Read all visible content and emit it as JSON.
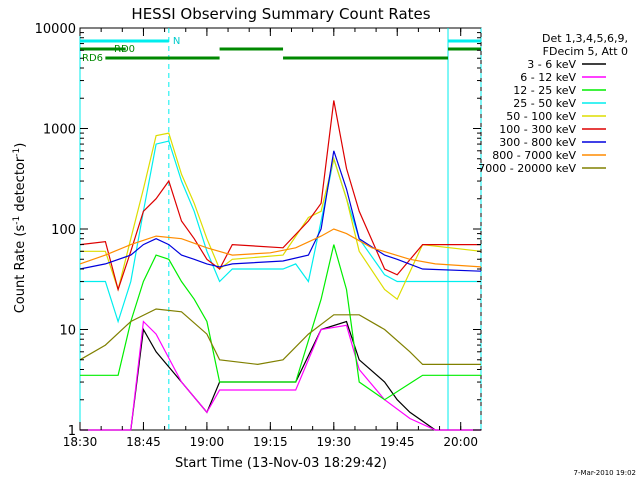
{
  "chart_data": {
    "type": "line",
    "title": "HESSI Observing Summary Count Rates",
    "xlabel": "Start Time (13-Nov-03 18:29:42)",
    "ylabel_main": "Count Rate (s",
    "ylabel_sup1": "-1",
    "ylabel_mid": " detector",
    "ylabel_sup2": "-1",
    "ylabel_end": ")",
    "footer": "7-Mar-2010 19:02",
    "y_log": true,
    "ylim": [
      1,
      10000
    ],
    "xlim": [
      "18:30",
      "20:08"
    ],
    "x_ticks": [
      "18:30",
      "18:45",
      "19:00",
      "19:15",
      "19:30",
      "19:45",
      "20:00"
    ],
    "y_ticks": [
      "1",
      "10",
      "100",
      "1000",
      "10000"
    ],
    "legend_header": [
      "Det 1,3,4,5,6,9,",
      "FDecim 5, Att 0"
    ],
    "series": [
      {
        "name": "3 - 6 keV",
        "color": "#000000",
        "values": [
          [
            18.5,
            1
          ],
          [
            18.7,
            1
          ],
          [
            18.75,
            10
          ],
          [
            18.8,
            6
          ],
          [
            18.9,
            3
          ],
          [
            19.0,
            1.5
          ],
          [
            19.05,
            3
          ],
          [
            19.2,
            3
          ],
          [
            19.35,
            3
          ],
          [
            19.45,
            10
          ],
          [
            19.55,
            12
          ],
          [
            19.6,
            5
          ],
          [
            19.7,
            3
          ],
          [
            19.75,
            2
          ],
          [
            19.8,
            1.5
          ],
          [
            19.9,
            1
          ],
          [
            20.08,
            1
          ]
        ]
      },
      {
        "name": "6 - 12 keV",
        "color": "#ff00ff",
        "values": [
          [
            18.5,
            1
          ],
          [
            18.7,
            1
          ],
          [
            18.75,
            12
          ],
          [
            18.8,
            9
          ],
          [
            18.9,
            3
          ],
          [
            19.0,
            1.5
          ],
          [
            19.05,
            2.5
          ],
          [
            19.2,
            2.5
          ],
          [
            19.35,
            2.5
          ],
          [
            19.45,
            10
          ],
          [
            19.55,
            11
          ],
          [
            19.6,
            4
          ],
          [
            19.7,
            2
          ],
          [
            19.8,
            1.3
          ],
          [
            19.9,
            1
          ],
          [
            20.08,
            1
          ]
        ]
      },
      {
        "name": "12 - 25 keV",
        "color": "#00ee00",
        "values": [
          [
            18.5,
            3.5
          ],
          [
            18.65,
            3.5
          ],
          [
            18.7,
            12
          ],
          [
            18.75,
            30
          ],
          [
            18.8,
            55
          ],
          [
            18.85,
            50
          ],
          [
            18.9,
            30
          ],
          [
            18.95,
            20
          ],
          [
            19.0,
            12
          ],
          [
            19.05,
            3
          ],
          [
            19.2,
            3
          ],
          [
            19.35,
            3
          ],
          [
            19.45,
            20
          ],
          [
            19.5,
            70
          ],
          [
            19.55,
            25
          ],
          [
            19.6,
            3
          ],
          [
            19.7,
            2
          ],
          [
            19.85,
            3.5
          ],
          [
            20.08,
            3.5
          ]
        ]
      },
      {
        "name": "25 - 50 keV",
        "color": "#00eeee",
        "values": [
          [
            18.5,
            30
          ],
          [
            18.6,
            30
          ],
          [
            18.65,
            12
          ],
          [
            18.7,
            30
          ],
          [
            18.75,
            150
          ],
          [
            18.8,
            700
          ],
          [
            18.85,
            750
          ],
          [
            18.9,
            300
          ],
          [
            18.95,
            150
          ],
          [
            19.0,
            60
          ],
          [
            19.05,
            30
          ],
          [
            19.1,
            40
          ],
          [
            19.3,
            40
          ],
          [
            19.35,
            45
          ],
          [
            19.4,
            30
          ],
          [
            19.45,
            120
          ],
          [
            19.5,
            500
          ],
          [
            19.55,
            200
          ],
          [
            19.6,
            80
          ],
          [
            19.7,
            35
          ],
          [
            19.75,
            30
          ],
          [
            19.85,
            30
          ],
          [
            20.08,
            30
          ]
        ]
      },
      {
        "name": "50 - 100 keV",
        "color": "#dddd00",
        "values": [
          [
            18.5,
            60
          ],
          [
            18.6,
            60
          ],
          [
            18.65,
            25
          ],
          [
            18.7,
            80
          ],
          [
            18.75,
            250
          ],
          [
            18.8,
            850
          ],
          [
            18.85,
            900
          ],
          [
            18.9,
            350
          ],
          [
            18.95,
            180
          ],
          [
            19.0,
            80
          ],
          [
            19.05,
            40
          ],
          [
            19.1,
            50
          ],
          [
            19.3,
            55
          ],
          [
            19.4,
            130
          ],
          [
            19.45,
            150
          ],
          [
            19.5,
            500
          ],
          [
            19.55,
            200
          ],
          [
            19.6,
            60
          ],
          [
            19.7,
            25
          ],
          [
            19.75,
            20
          ],
          [
            19.85,
            70
          ],
          [
            20.08,
            60
          ]
        ]
      },
      {
        "name": "100 - 300 keV",
        "color": "#dd0000",
        "values": [
          [
            18.5,
            70
          ],
          [
            18.6,
            75
          ],
          [
            18.65,
            25
          ],
          [
            18.7,
            60
          ],
          [
            18.75,
            150
          ],
          [
            18.8,
            200
          ],
          [
            18.85,
            300
          ],
          [
            18.9,
            120
          ],
          [
            18.95,
            80
          ],
          [
            19.0,
            50
          ],
          [
            19.05,
            40
          ],
          [
            19.1,
            70
          ],
          [
            19.3,
            65
          ],
          [
            19.4,
            120
          ],
          [
            19.45,
            180
          ],
          [
            19.5,
            1900
          ],
          [
            19.55,
            400
          ],
          [
            19.6,
            150
          ],
          [
            19.7,
            40
          ],
          [
            19.75,
            35
          ],
          [
            19.85,
            70
          ],
          [
            20.08,
            70
          ]
        ]
      },
      {
        "name": "300 - 800 keV",
        "color": "#0000dd",
        "values": [
          [
            18.5,
            40
          ],
          [
            18.6,
            45
          ],
          [
            18.7,
            55
          ],
          [
            18.75,
            70
          ],
          [
            18.8,
            80
          ],
          [
            18.85,
            70
          ],
          [
            18.9,
            55
          ],
          [
            18.95,
            50
          ],
          [
            19.0,
            45
          ],
          [
            19.05,
            42
          ],
          [
            19.1,
            45
          ],
          [
            19.3,
            48
          ],
          [
            19.4,
            55
          ],
          [
            19.45,
            100
          ],
          [
            19.5,
            600
          ],
          [
            19.55,
            250
          ],
          [
            19.6,
            80
          ],
          [
            19.7,
            55
          ],
          [
            19.75,
            50
          ],
          [
            19.85,
            40
          ],
          [
            20.08,
            38
          ]
        ]
      },
      {
        "name": "800 - 7000 keV",
        "color": "#ff8c00",
        "values": [
          [
            18.5,
            45
          ],
          [
            18.6,
            55
          ],
          [
            18.7,
            70
          ],
          [
            18.8,
            85
          ],
          [
            18.9,
            80
          ],
          [
            19.0,
            65
          ],
          [
            19.1,
            55
          ],
          [
            19.25,
            58
          ],
          [
            19.35,
            65
          ],
          [
            19.45,
            85
          ],
          [
            19.5,
            100
          ],
          [
            19.55,
            90
          ],
          [
            19.65,
            65
          ],
          [
            19.8,
            50
          ],
          [
            19.9,
            45
          ],
          [
            20.08,
            42
          ]
        ]
      },
      {
        "name": "7000 - 20000 keV",
        "color": "#808000",
        "values": [
          [
            18.5,
            5
          ],
          [
            18.6,
            7
          ],
          [
            18.7,
            12
          ],
          [
            18.8,
            16
          ],
          [
            18.9,
            15
          ],
          [
            19.0,
            9
          ],
          [
            19.05,
            5
          ],
          [
            19.2,
            4.5
          ],
          [
            19.3,
            5
          ],
          [
            19.4,
            9
          ],
          [
            19.5,
            14
          ],
          [
            19.6,
            14
          ],
          [
            19.7,
            10
          ],
          [
            19.8,
            6
          ],
          [
            19.85,
            4.5
          ],
          [
            20.08,
            4.5
          ]
        ]
      }
    ],
    "flag_bars": [
      {
        "label": "N",
        "color": "#00eeee",
        "level": "top",
        "spans": [
          [
            18.5,
            18.85
          ],
          [
            19.95,
            20.08
          ]
        ]
      },
      {
        "label": "RD0",
        "color": "#008800",
        "level": "upper",
        "spans": [
          [
            18.5,
            18.68
          ],
          [
            19.05,
            19.3
          ],
          [
            19.95,
            20.08
          ]
        ]
      },
      {
        "label": "RD6",
        "color": "#008800",
        "level": "lower",
        "spans": [
          [
            18.6,
            19.05
          ],
          [
            19.3,
            19.95
          ]
        ]
      }
    ],
    "vertical_lines": [
      {
        "x": 18.5,
        "style": "solid"
      },
      {
        "x": 18.85,
        "style": "dashed"
      },
      {
        "x": 19.95,
        "style": "solid"
      },
      {
        "x": 20.08,
        "style": "dashed"
      }
    ]
  }
}
